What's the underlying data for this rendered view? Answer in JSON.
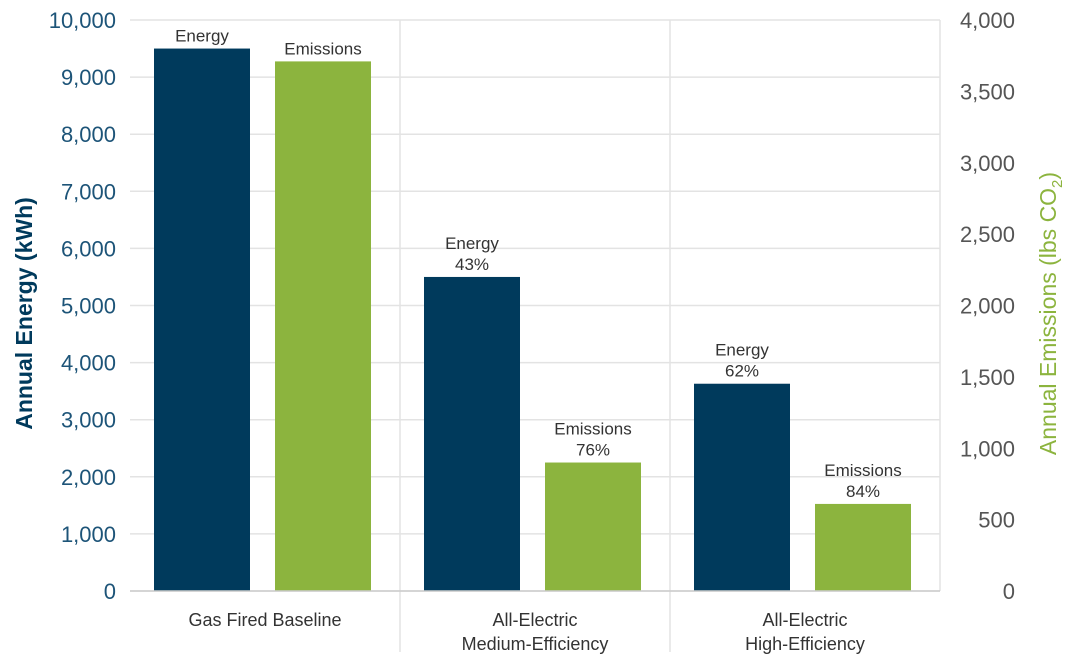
{
  "chart_data": {
    "type": "bar",
    "categories": [
      "Gas Fired Baseline",
      "All-Electric Medium-Efficiency",
      "All-Electric High-Efficiency"
    ],
    "category_lines": [
      [
        "Gas Fired Baseline"
      ],
      [
        "All-Electric",
        "Medium-Efficiency"
      ],
      [
        "All-Electric",
        "High-Efficiency"
      ]
    ],
    "series": [
      {
        "name": "Energy",
        "axis": "left",
        "color": "#003a5c",
        "values": [
          9500,
          5500,
          3630
        ],
        "labels": [
          [
            "Energy"
          ],
          [
            "Energy",
            "43%"
          ],
          [
            "Energy",
            "62%"
          ]
        ]
      },
      {
        "name": "Emissions",
        "axis": "right",
        "color": "#8cb43e",
        "values": [
          3710,
          900,
          610
        ],
        "labels": [
          [
            "Emissions"
          ],
          [
            "Emissions",
            "76%"
          ],
          [
            "Emissions",
            "84%"
          ]
        ]
      }
    ],
    "y_left": {
      "label": "Annual Energy (kWh)",
      "min": 0,
      "max": 10000,
      "ticks": [
        0,
        1000,
        2000,
        3000,
        4000,
        5000,
        6000,
        7000,
        8000,
        9000,
        10000
      ],
      "tick_labels": [
        "0",
        "1,000",
        "2,000",
        "3,000",
        "4,000",
        "5,000",
        "6,000",
        "7,000",
        "8,000",
        "9,000",
        "10,000"
      ],
      "color": "#1d5478"
    },
    "y_right": {
      "label": "Annual Emissions (lbs CO",
      "label_subscript": "2",
      "label_suffix": ")",
      "min": 0,
      "max": 4000,
      "ticks": [
        0,
        500,
        1000,
        1500,
        2000,
        2500,
        3000,
        3500,
        4000
      ],
      "tick_labels": [
        "0",
        "500",
        "1,000",
        "1,500",
        "2,000",
        "2,500",
        "3,000",
        "3,500",
        "4,000"
      ],
      "color": "#8cb43e"
    },
    "grid": true
  }
}
